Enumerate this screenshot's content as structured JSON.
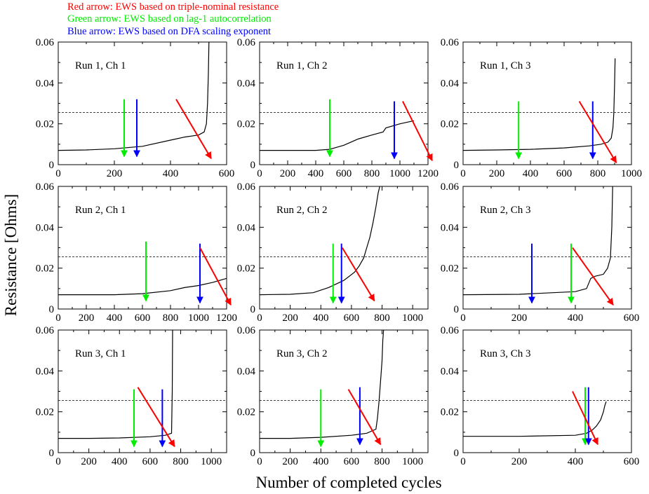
{
  "legend": [
    {
      "text": "Red arrow: EWS based on triple-nominal resistance",
      "color": "#ff0000"
    },
    {
      "text": "Green arrow: EWS based on lag-1 autocorrelation",
      "color": "#00ee00"
    },
    {
      "text": "Blue arrow: EWS based on DFA scaling exponent",
      "color": "#0000ff"
    }
  ],
  "xlabel": "Number of completed cycles",
  "ylabel": "Resistance [Ohms]",
  "chart_data": [
    {
      "type": "line",
      "title": "Run 1, Ch 1",
      "xlim": [
        0,
        600
      ],
      "xticks": [
        0,
        200,
        400,
        600
      ],
      "ylim": [
        0,
        0.06
      ],
      "yticks": [
        0,
        0.02,
        0.04,
        0.06
      ],
      "threshold": 0.0255,
      "x": [
        0,
        100,
        200,
        300,
        400,
        450,
        500,
        520,
        528,
        532,
        535,
        537
      ],
      "y": [
        0.007,
        0.0072,
        0.0078,
        0.009,
        0.012,
        0.0135,
        0.0145,
        0.016,
        0.02,
        0.03,
        0.045,
        0.06
      ],
      "arrows": {
        "green": {
          "x": 235,
          "y_start": 0.032,
          "y_end": 0.004
        },
        "blue": {
          "x": 280,
          "y_start": 0.032,
          "y_end": 0.004
        },
        "red": {
          "x_start": 420,
          "y_start": 0.032,
          "x_end": 545,
          "y_end": 0.003
        }
      }
    },
    {
      "type": "line",
      "title": "Run 1, Ch 2",
      "xlim": [
        0,
        1200
      ],
      "xticks": [
        0,
        200,
        400,
        600,
        800,
        1000,
        1200
      ],
      "ylim": [
        0,
        0.06
      ],
      "yticks": [
        0,
        0.02,
        0.04,
        0.06
      ],
      "threshold": 0.0255,
      "x": [
        0,
        200,
        400,
        500,
        550,
        600,
        650,
        700,
        800,
        880,
        900,
        1000,
        1100
      ],
      "y": [
        0.007,
        0.007,
        0.007,
        0.0075,
        0.0085,
        0.0095,
        0.011,
        0.0125,
        0.0145,
        0.016,
        0.018,
        0.02,
        0.0215
      ],
      "arrows": {
        "green": {
          "x": 500,
          "y_start": 0.032,
          "y_end": 0.004
        },
        "blue": {
          "x": 960,
          "y_start": 0.031,
          "y_end": 0.003
        },
        "red": {
          "x_start": 1020,
          "y_start": 0.031,
          "x_end": 1230,
          "y_end": 0.002
        }
      }
    },
    {
      "type": "line",
      "title": "Run 1, Ch 3",
      "xlim": [
        0,
        1000
      ],
      "xticks": [
        0,
        200,
        400,
        600,
        800,
        1000
      ],
      "ylim": [
        0,
        0.06
      ],
      "yticks": [
        0,
        0.02,
        0.04,
        0.06
      ],
      "threshold": 0.0255,
      "x": [
        0,
        200,
        400,
        600,
        750,
        820,
        860,
        880,
        890,
        895,
        900,
        903
      ],
      "y": [
        0.007,
        0.0072,
        0.0075,
        0.0082,
        0.0092,
        0.01,
        0.011,
        0.013,
        0.018,
        0.025,
        0.04,
        0.052
      ],
      "arrows": {
        "green": {
          "x": 330,
          "y_start": 0.031,
          "y_end": 0.003
        },
        "blue": {
          "x": 770,
          "y_start": 0.031,
          "y_end": 0.003
        },
        "red": {
          "x_start": 690,
          "y_start": 0.031,
          "x_end": 910,
          "y_end": 0.001
        }
      }
    },
    {
      "type": "line",
      "title": "Run 2, Ch 1",
      "xlim": [
        0,
        1200
      ],
      "xticks": [
        0,
        200,
        400,
        600,
        800,
        1000,
        1200
      ],
      "ylim": [
        0,
        0.06
      ],
      "yticks": [
        0,
        0.02,
        0.04,
        0.06
      ],
      "threshold": 0.0255,
      "x": [
        0,
        200,
        400,
        600,
        800,
        900,
        1000,
        1100,
        1150,
        1200
      ],
      "y": [
        0.007,
        0.007,
        0.007,
        0.0075,
        0.009,
        0.0105,
        0.0115,
        0.013,
        0.014,
        0.015
      ],
      "arrows": {
        "green": {
          "x": 625,
          "y_start": 0.033,
          "y_end": 0.004
        },
        "blue": {
          "x": 1010,
          "y_start": 0.032,
          "y_end": 0.003
        },
        "red": {
          "x_start": 1010,
          "y_start": 0.03,
          "x_end": 1230,
          "y_end": 0.002
        }
      }
    },
    {
      "type": "line",
      "title": "Run 2, Ch 2",
      "xlim": [
        0,
        1100
      ],
      "xticks": [
        0,
        200,
        400,
        600,
        800,
        1000
      ],
      "ylim": [
        0,
        0.06
      ],
      "yticks": [
        0,
        0.02,
        0.04,
        0.06
      ],
      "threshold": 0.0255,
      "x": [
        0,
        200,
        350,
        450,
        550,
        620,
        650,
        680,
        700,
        720,
        740,
        760,
        775,
        785
      ],
      "y": [
        0.007,
        0.0072,
        0.008,
        0.0105,
        0.014,
        0.018,
        0.021,
        0.025,
        0.03,
        0.035,
        0.042,
        0.05,
        0.057,
        0.06
      ],
      "arrows": {
        "green": {
          "x": 480,
          "y_start": 0.032,
          "y_end": 0.003
        },
        "blue": {
          "x": 535,
          "y_start": 0.032,
          "y_end": 0.003
        },
        "red": {
          "x_start": 540,
          "y_start": 0.03,
          "x_end": 750,
          "y_end": 0.004
        }
      }
    },
    {
      "type": "line",
      "title": "Run 2, Ch 3",
      "xlim": [
        0,
        600
      ],
      "xticks": [
        0,
        200,
        400,
        600
      ],
      "ylim": [
        0,
        0.06
      ],
      "yticks": [
        0,
        0.02,
        0.04,
        0.06
      ],
      "threshold": 0.0255,
      "x": [
        0,
        200,
        400,
        440,
        455,
        470,
        500,
        515,
        525,
        530,
        533
      ],
      "y": [
        0.007,
        0.0072,
        0.0085,
        0.01,
        0.015,
        0.016,
        0.017,
        0.02,
        0.025,
        0.04,
        0.06
      ],
      "arrows": {
        "green": {
          "x": 385,
          "y_start": 0.032,
          "y_end": 0.003
        },
        "blue": {
          "x": 245,
          "y_start": 0.032,
          "y_end": 0.003
        },
        "red": {
          "x_start": 390,
          "y_start": 0.03,
          "x_end": 535,
          "y_end": 0.002
        }
      }
    },
    {
      "type": "line",
      "title": "Run 3, Ch 1",
      "xlim": [
        0,
        1100
      ],
      "xticks": [
        0,
        200,
        400,
        600,
        800,
        1000
      ],
      "ylim": [
        0,
        0.06
      ],
      "yticks": [
        0,
        0.02,
        0.04,
        0.06
      ],
      "threshold": 0.0255,
      "x": [
        0,
        200,
        400,
        600,
        700,
        740,
        745,
        747
      ],
      "y": [
        0.007,
        0.007,
        0.0072,
        0.0078,
        0.0085,
        0.0095,
        0.03,
        0.06
      ],
      "arrows": {
        "green": {
          "x": 495,
          "y_start": 0.031,
          "y_end": 0.003
        },
        "blue": {
          "x": 680,
          "y_start": 0.031,
          "y_end": 0.003
        },
        "red": {
          "x_start": 520,
          "y_start": 0.032,
          "x_end": 760,
          "y_end": 0.003
        }
      }
    },
    {
      "type": "line",
      "title": "Run 3, Ch 2",
      "xlim": [
        0,
        1100
      ],
      "xticks": [
        0,
        200,
        400,
        600,
        800,
        1000
      ],
      "ylim": [
        0,
        0.06
      ],
      "yticks": [
        0,
        0.02,
        0.04,
        0.06
      ],
      "threshold": 0.0255,
      "x": [
        0,
        200,
        400,
        600,
        700,
        760,
        770,
        780,
        790,
        800,
        805,
        810
      ],
      "y": [
        0.007,
        0.007,
        0.0075,
        0.0085,
        0.0095,
        0.0115,
        0.017,
        0.025,
        0.035,
        0.045,
        0.055,
        0.06
      ],
      "arrows": {
        "green": {
          "x": 400,
          "y_start": 0.031,
          "y_end": 0.003
        },
        "blue": {
          "x": 655,
          "y_start": 0.032,
          "y_end": 0.004
        },
        "red": {
          "x_start": 580,
          "y_start": 0.031,
          "x_end": 790,
          "y_end": 0.004
        }
      }
    },
    {
      "type": "line",
      "title": "Run 3, Ch 3",
      "xlim": [
        0,
        600
      ],
      "xticks": [
        0,
        200,
        400,
        600
      ],
      "ylim": [
        0,
        0.06
      ],
      "yticks": [
        0,
        0.02,
        0.04,
        0.06
      ],
      "threshold": 0.0255,
      "x": [
        0,
        200,
        400,
        440,
        460,
        475,
        490,
        500,
        505,
        510
      ],
      "y": [
        0.008,
        0.008,
        0.0085,
        0.0095,
        0.011,
        0.013,
        0.016,
        0.02,
        0.023,
        0.025
      ],
      "arrows": {
        "green": {
          "x": 435,
          "y_start": 0.032,
          "y_end": 0.004
        },
        "blue": {
          "x": 447,
          "y_start": 0.032,
          "y_end": 0.004
        },
        "red": {
          "x_start": 390,
          "y_start": 0.03,
          "x_end": 480,
          "y_end": 0.004
        }
      }
    }
  ]
}
